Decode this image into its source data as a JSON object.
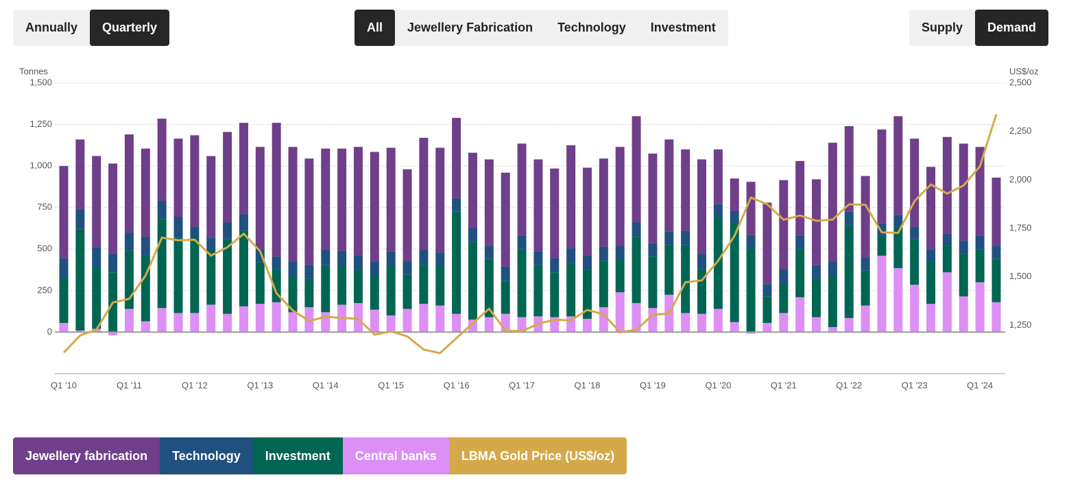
{
  "controls": {
    "period": [
      "Annually",
      "Quarterly"
    ],
    "filter": [
      "All",
      "Jewellery Fabrication",
      "Technology",
      "Investment"
    ],
    "view": [
      "Supply",
      "Demand"
    ]
  },
  "chart_data": {
    "type": "bar",
    "stacked": true,
    "ylabel": "Tonnes",
    "y2label": "US$/oz",
    "categories": [
      "Q1 '10",
      null,
      null,
      null,
      "Q1 '11",
      null,
      null,
      null,
      "Q1 '12",
      null,
      null,
      null,
      "Q1 '13",
      null,
      null,
      null,
      "Q1 '14",
      null,
      null,
      null,
      "Q1 '15",
      null,
      null,
      null,
      "Q1 '16",
      null,
      null,
      null,
      "Q1 '17",
      null,
      null,
      null,
      "Q1 '18",
      null,
      null,
      null,
      "Q1 '19",
      null,
      null,
      null,
      "Q1 '20",
      null,
      null,
      null,
      "Q1 '21",
      null,
      null,
      null,
      "Q1 '22",
      null,
      null,
      null,
      "Q1 '23",
      null,
      null,
      null,
      "Q1 '24",
      null
    ],
    "ylim": [
      -250,
      1500
    ],
    "yticks": [
      0,
      250,
      500,
      750,
      {
        "value": 1000,
        "label": "1,000"
      },
      {
        "value": 1250,
        "label": "1,250"
      },
      {
        "value": 1500,
        "label": "1,500"
      }
    ],
    "y2lim": [
      1000,
      2500
    ],
    "y2ticks": [
      {
        "value": 1250,
        "label": "1,250"
      },
      {
        "value": 1500,
        "label": "1,500"
      },
      {
        "value": 1750,
        "label": "1,750"
      },
      {
        "value": 2000,
        "label": "2,000"
      },
      {
        "value": 2250,
        "label": "2,250"
      },
      {
        "value": 2500,
        "label": "2,500"
      }
    ],
    "grid": true,
    "series": [
      {
        "name": "Jewellery fabrication",
        "color": "#6f3f8a",
        "values": [
          555,
          420,
          550,
          545,
          590,
          530,
          495,
          470,
          550,
          490,
          545,
          550,
          615,
          805,
          690,
          640,
          610,
          615,
          655,
          660,
          625,
          555,
          675,
          630,
          485,
          455,
          520,
          565,
          555,
          555,
          540,
          620,
          530,
          530,
          595,
          640,
          540,
          555,
          490,
          570,
          330,
          195,
          320,
          490,
          535,
          450,
          515,
          715,
          515,
          490,
          565,
          595,
          530,
          495,
          580,
          585,
          535,
          410
        ]
      },
      {
        "name": "Technology",
        "color": "#1f5080",
        "values": [
          115,
          120,
          120,
          110,
          110,
          115,
          110,
          125,
          70,
          75,
          100,
          100,
          80,
          75,
          95,
          85,
          90,
          90,
          85,
          85,
          85,
          80,
          85,
          80,
          80,
          80,
          80,
          85,
          80,
          80,
          85,
          90,
          85,
          85,
          85,
          85,
          80,
          80,
          85,
          90,
          75,
          70,
          80,
          75,
          85,
          80,
          85,
          85,
          80,
          80,
          75,
          70,
          75,
          75,
          75,
          80,
          80,
          80
        ]
      },
      {
        "name": "Investment",
        "color": "#006652",
        "values": [
          275,
          610,
          370,
          360,
          350,
          395,
          535,
          455,
          450,
          330,
          450,
          455,
          250,
          200,
          210,
          170,
          285,
          235,
          200,
          205,
          300,
          205,
          240,
          240,
          615,
          470,
          350,
          200,
          410,
          310,
          270,
          320,
          295,
          280,
          195,
          400,
          310,
          300,
          410,
          270,
          555,
          600,
          505,
          160,
          180,
          290,
          230,
          310,
          560,
          210,
          120,
          250,
          275,
          255,
          160,
          255,
          200,
          260
        ]
      },
      {
        "name": "Central banks",
        "color": "#dc8ff5",
        "values": [
          55,
          10,
          20,
          -20,
          140,
          65,
          145,
          115,
          115,
          165,
          110,
          155,
          170,
          180,
          120,
          150,
          120,
          165,
          175,
          135,
          100,
          140,
          170,
          160,
          110,
          75,
          90,
          110,
          90,
          95,
          90,
          95,
          80,
          150,
          240,
          175,
          145,
          225,
          115,
          110,
          140,
          60,
          -10,
          55,
          115,
          210,
          90,
          30,
          85,
          160,
          460,
          385,
          285,
          170,
          360,
          215,
          300,
          180
        ]
      },
      {
        "name": "LBMA Gold Price (US$/oz)",
        "type": "line",
        "axis": "y2",
        "color": "#d4a94a",
        "values": [
          1109,
          1197,
          1227,
          1367,
          1386,
          1506,
          1702,
          1688,
          1691,
          1609,
          1652,
          1722,
          1632,
          1415,
          1326,
          1272,
          1293,
          1288,
          1282,
          1201,
          1218,
          1192,
          1124,
          1106,
          1183,
          1260,
          1335,
          1222,
          1219,
          1257,
          1278,
          1275,
          1329,
          1306,
          1213,
          1226,
          1304,
          1310,
          1472,
          1481,
          1583,
          1711,
          1909,
          1874,
          1794,
          1816,
          1789,
          1795,
          1874,
          1871,
          1729,
          1726,
          1890,
          1976,
          1929,
          1971,
          2070,
          2338
        ]
      }
    ]
  }
}
